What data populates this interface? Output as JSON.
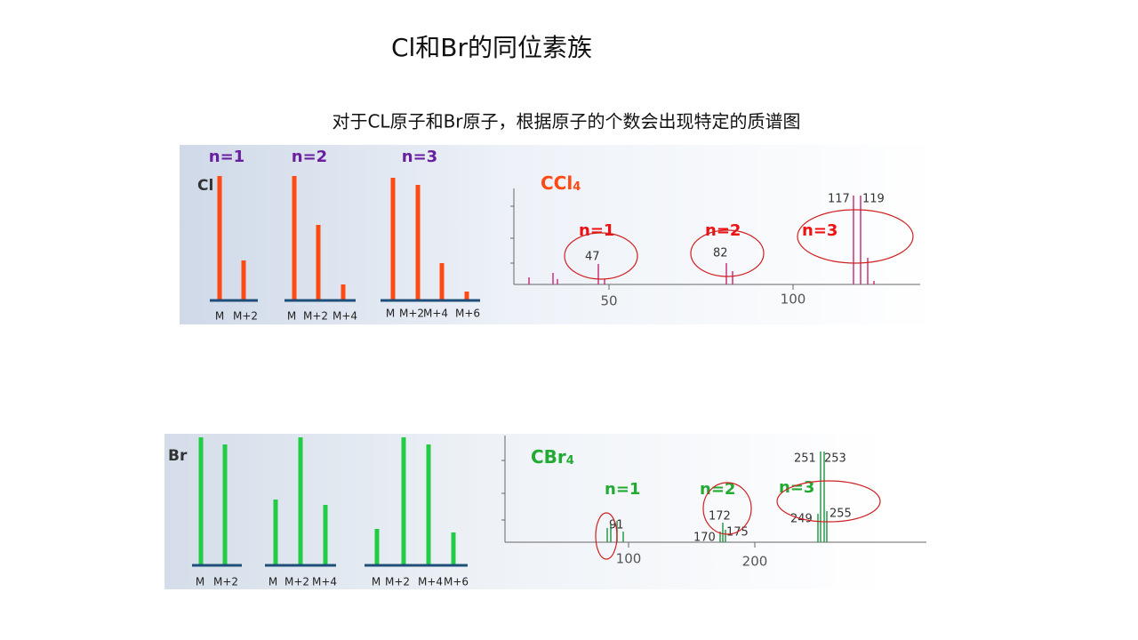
{
  "title": "Cl和Br的同位素族",
  "subtitle": "对于CL原子和Br原子，根据原子的个数会出现特定的质谱图",
  "cl_pattern": {
    "element": "Cl",
    "groups": [
      {
        "n": "n=1",
        "labels": [
          "M",
          "M+2"
        ]
      },
      {
        "n": "n=2",
        "labels": [
          "M",
          "M+2",
          "M+4"
        ]
      },
      {
        "n": "n=3",
        "labels": [
          "M",
          "M+2",
          "M+4",
          "M+6"
        ]
      }
    ]
  },
  "ccl4_spectrum": {
    "formula": "CCl",
    "formula_subscript": "4",
    "annotations": [
      "n=1",
      "n=2",
      "n=3"
    ],
    "peak_labels": [
      "47",
      "82",
      "117",
      "119"
    ],
    "axis_labels": [
      "50",
      "100"
    ]
  },
  "br_pattern": {
    "element": "Br",
    "groups": [
      {
        "labels": [
          "M",
          "M+2"
        ]
      },
      {
        "labels": [
          "M",
          "M+2",
          "M+4"
        ]
      },
      {
        "labels": [
          "M",
          "M+2",
          "M+4",
          "M+6"
        ]
      }
    ]
  },
  "cbr4_spectrum": {
    "formula": "CBr",
    "formula_subscript": "4",
    "annotations": [
      "n=1",
      "n=2",
      "n=3"
    ],
    "peak_labels": [
      "91",
      "172",
      "170",
      "175",
      "251",
      "253",
      "249",
      "255"
    ],
    "axis_labels": [
      "100",
      "200"
    ]
  }
}
